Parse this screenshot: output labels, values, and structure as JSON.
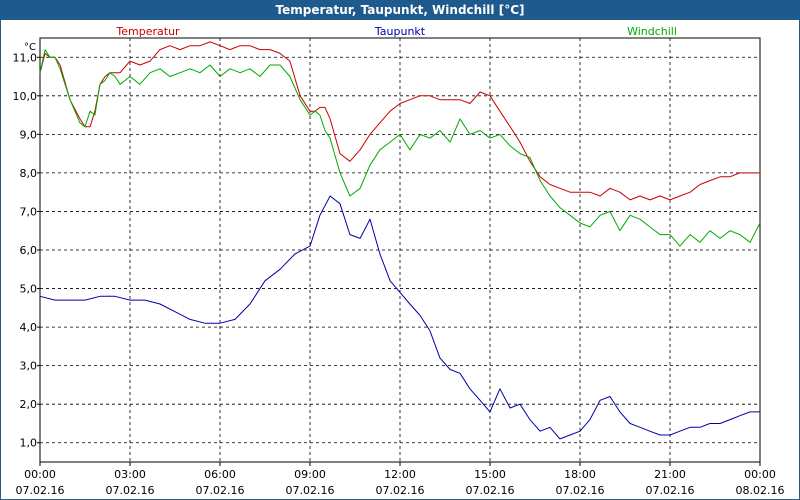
{
  "window": {
    "title": "Temperatur, Taupunkt, Windchill [°C]"
  },
  "chart_data": {
    "type": "line",
    "title": "Temperatur, Taupunkt, Windchill [°C]",
    "ylabel": "°C",
    "ylim": [
      0.5,
      11.5
    ],
    "grid": true,
    "legend_position": "top",
    "y_ticks": [
      "1,0",
      "2,0",
      "3,0",
      "4,0",
      "5,0",
      "6,0",
      "7,0",
      "8,0",
      "9,0",
      "10,0",
      "11,0"
    ],
    "x_ticks": [
      {
        "time": "00:00",
        "date": "07.02.16"
      },
      {
        "time": "03:00",
        "date": "07.02.16"
      },
      {
        "time": "06:00",
        "date": "07.02.16"
      },
      {
        "time": "09:00",
        "date": "07.02.16"
      },
      {
        "time": "12:00",
        "date": "07.02.16"
      },
      {
        "time": "15:00",
        "date": "07.02.16"
      },
      {
        "time": "18:00",
        "date": "07.02.16"
      },
      {
        "time": "21:00",
        "date": "07.02.16"
      },
      {
        "time": "00:00",
        "date": "08.02.16"
      }
    ],
    "x_unit": "hours since 07.02.16 00:00",
    "series": [
      {
        "name": "Temperatur",
        "color": "#cc0000",
        "x": [
          0,
          0.17,
          0.33,
          0.5,
          0.67,
          1,
          1.33,
          1.5,
          1.67,
          1.83,
          2,
          2.17,
          2.33,
          2.5,
          2.67,
          3,
          3.33,
          3.67,
          4,
          4.33,
          4.67,
          5,
          5.33,
          5.67,
          6,
          6.33,
          6.67,
          7,
          7.33,
          7.67,
          8,
          8.33,
          8.67,
          9,
          9.17,
          9.33,
          9.5,
          9.67,
          10,
          10.33,
          10.67,
          11,
          11.33,
          11.67,
          12,
          12.33,
          12.67,
          13,
          13.33,
          13.67,
          14,
          14.33,
          14.67,
          15,
          15.33,
          15.67,
          16,
          16.33,
          16.67,
          17,
          17.33,
          17.67,
          18,
          18.33,
          18.67,
          19,
          19.33,
          19.67,
          20,
          20.33,
          20.67,
          21,
          21.33,
          21.67,
          22,
          22.33,
          22.67,
          23,
          23.33,
          23.67,
          24
        ],
        "values": [
          10.6,
          11.1,
          11.0,
          11.0,
          10.8,
          9.9,
          9.4,
          9.2,
          9.2,
          9.6,
          10.3,
          10.5,
          10.6,
          10.6,
          10.6,
          10.9,
          10.8,
          10.9,
          11.2,
          11.3,
          11.2,
          11.3,
          11.3,
          11.4,
          11.3,
          11.2,
          11.3,
          11.3,
          11.2,
          11.2,
          11.1,
          10.9,
          10.0,
          9.6,
          9.6,
          9.7,
          9.7,
          9.4,
          8.5,
          8.3,
          8.6,
          9.0,
          9.3,
          9.6,
          9.8,
          9.9,
          10.0,
          10.0,
          9.9,
          9.9,
          9.9,
          9.8,
          10.1,
          10.0,
          9.6,
          9.2,
          8.8,
          8.3,
          7.9,
          7.7,
          7.6,
          7.5,
          7.5,
          7.5,
          7.4,
          7.6,
          7.5,
          7.3,
          7.4,
          7.3,
          7.4,
          7.3,
          7.4,
          7.5,
          7.7,
          7.8,
          7.9,
          7.9,
          8.0,
          8.0,
          8.0
        ],
        "values_note": ""
      },
      {
        "name": "Taupunkt",
        "color": "#0000aa",
        "x": [
          0,
          0.5,
          1,
          1.5,
          2,
          2.5,
          3,
          3.5,
          4,
          4.5,
          5,
          5.5,
          6,
          6.5,
          7,
          7.5,
          8,
          8.5,
          9,
          9.33,
          9.67,
          10,
          10.33,
          10.67,
          11,
          11.33,
          11.67,
          12,
          12.33,
          12.67,
          13,
          13.33,
          13.67,
          14,
          14.33,
          14.67,
          15,
          15.33,
          15.67,
          16,
          16.33,
          16.67,
          17,
          17.33,
          17.67,
          18,
          18.33,
          18.67,
          19,
          19.33,
          19.67,
          20,
          20.33,
          20.67,
          21,
          21.33,
          21.67,
          22,
          22.33,
          22.67,
          23,
          23.33,
          23.67,
          24
        ],
        "values": [
          4.8,
          4.7,
          4.7,
          4.7,
          4.8,
          4.8,
          4.7,
          4.7,
          4.6,
          4.4,
          4.2,
          4.1,
          4.1,
          4.2,
          4.6,
          5.2,
          5.5,
          5.9,
          6.1,
          6.9,
          7.4,
          7.2,
          6.4,
          6.3,
          6.8,
          5.9,
          5.2,
          4.9,
          4.6,
          4.3,
          3.9,
          3.2,
          2.9,
          2.8,
          2.4,
          2.1,
          1.8,
          2.4,
          1.9,
          2.0,
          1.6,
          1.3,
          1.4,
          1.1,
          1.2,
          1.3,
          1.6,
          2.1,
          2.2,
          1.8,
          1.5,
          1.4,
          1.3,
          1.2,
          1.2,
          1.3,
          1.4,
          1.4,
          1.5,
          1.5,
          1.6,
          1.7,
          1.8,
          1.8
        ]
      },
      {
        "name": "Windchill",
        "color": "#00aa00",
        "x": [
          0,
          0.17,
          0.33,
          0.5,
          0.67,
          1,
          1.33,
          1.5,
          1.67,
          1.83,
          2,
          2.17,
          2.33,
          2.5,
          2.67,
          3,
          3.33,
          3.67,
          4,
          4.33,
          4.67,
          5,
          5.33,
          5.67,
          6,
          6.33,
          6.67,
          7,
          7.33,
          7.67,
          8,
          8.33,
          8.67,
          9,
          9.17,
          9.33,
          9.5,
          9.67,
          10,
          10.33,
          10.67,
          11,
          11.33,
          11.67,
          12,
          12.33,
          12.67,
          13,
          13.33,
          13.67,
          14,
          14.33,
          14.67,
          15,
          15.33,
          15.67,
          16,
          16.33,
          16.67,
          17,
          17.33,
          17.67,
          18,
          18.33,
          18.67,
          19,
          19.33,
          19.67,
          20,
          20.33,
          20.67,
          21,
          21.33,
          21.67,
          22,
          22.33,
          22.67,
          23,
          23.33,
          23.67,
          24
        ],
        "values": [
          10.6,
          11.2,
          11.0,
          11.0,
          10.7,
          9.9,
          9.3,
          9.2,
          9.6,
          9.5,
          10.3,
          10.4,
          10.6,
          10.5,
          10.3,
          10.5,
          10.3,
          10.6,
          10.7,
          10.5,
          10.6,
          10.7,
          10.6,
          10.8,
          10.5,
          10.7,
          10.6,
          10.7,
          10.5,
          10.8,
          10.8,
          10.5,
          9.9,
          9.5,
          9.6,
          9.5,
          9.1,
          8.9,
          8.0,
          7.4,
          7.6,
          8.2,
          8.6,
          8.8,
          9.0,
          8.6,
          9.0,
          8.9,
          9.1,
          8.8,
          9.4,
          9.0,
          9.1,
          8.9,
          9.0,
          8.7,
          8.5,
          8.4,
          7.8,
          7.4,
          7.1,
          6.9,
          6.7,
          6.6,
          6.9,
          7.0,
          6.5,
          6.9,
          6.8,
          6.6,
          6.4,
          6.4,
          6.1,
          6.4,
          6.2,
          6.5,
          6.3,
          6.5,
          6.4,
          6.2,
          6.7
        ],
        "values_note": ""
      }
    ]
  }
}
